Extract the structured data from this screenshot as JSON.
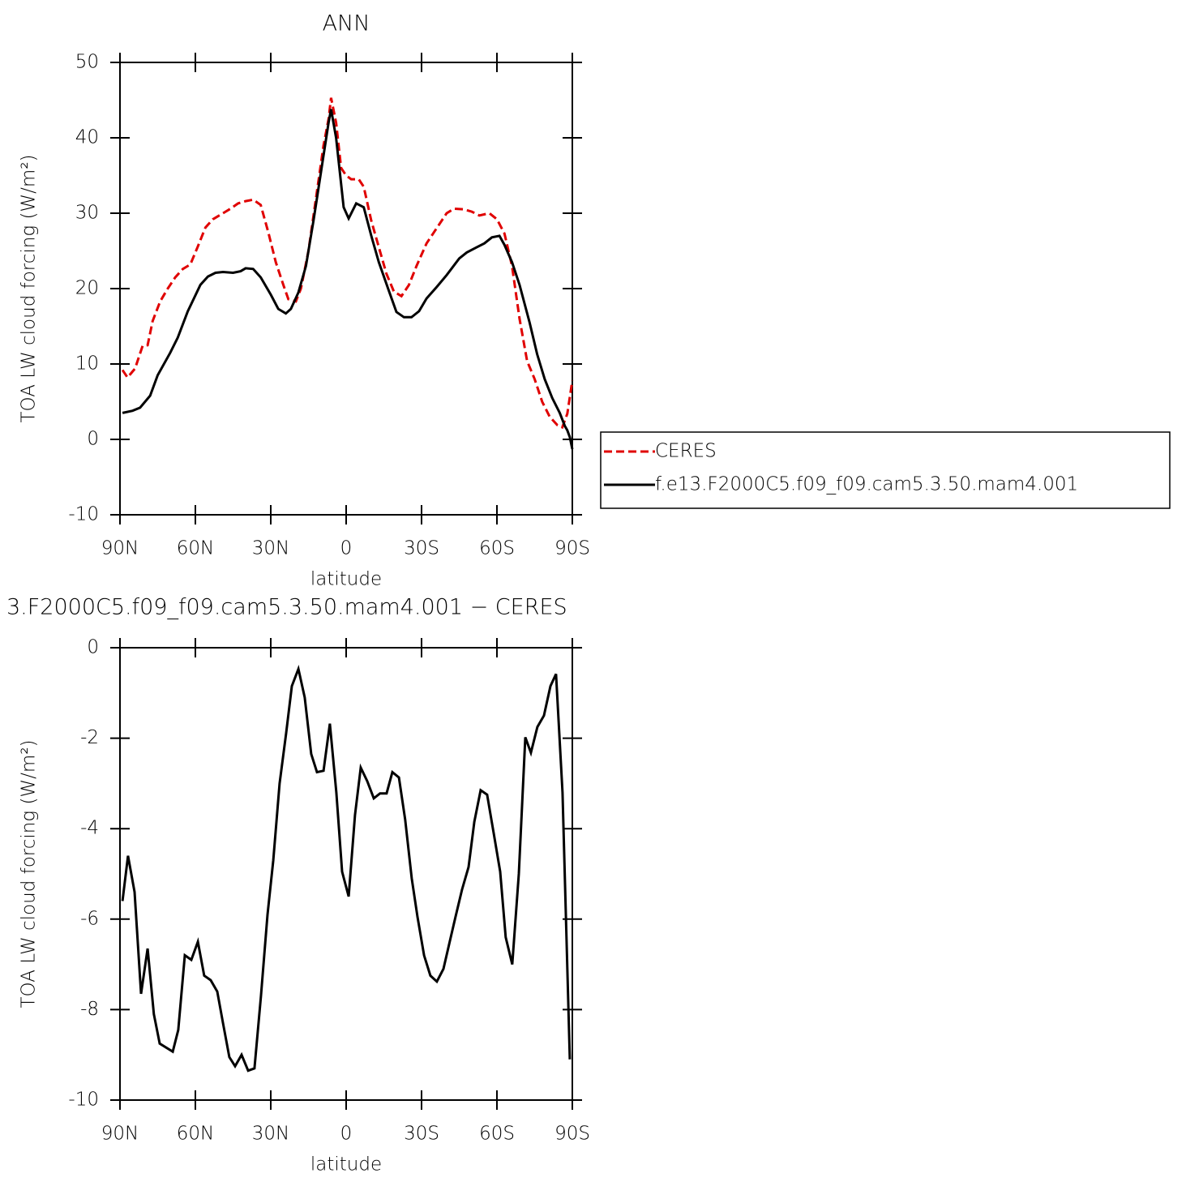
{
  "chart_data": [
    {
      "type": "line",
      "title": "ANN",
      "xlabel": "latitude",
      "ylabel": "TOA LW cloud forcing (W/m²)",
      "xlim": [
        90,
        -90
      ],
      "ylim": [
        -10,
        50
      ],
      "xticks": [
        {
          "value": 90,
          "label": "90N"
        },
        {
          "value": 60,
          "label": "60N"
        },
        {
          "value": 30,
          "label": "30N"
        },
        0,
        {
          "value": -30,
          "label": "30S"
        },
        {
          "value": -60,
          "label": "60S"
        },
        {
          "value": -90,
          "label": "90S"
        }
      ],
      "yticks": [
        -10,
        0,
        10,
        20,
        30,
        40,
        50
      ],
      "legend": "right",
      "series": [
        {
          "name": "CERES",
          "color": "#e00000",
          "dash": true,
          "x": [
            89,
            87,
            84,
            81,
            79,
            77,
            74,
            71,
            68,
            65,
            62,
            59,
            56,
            53,
            49,
            46,
            43,
            40,
            37,
            34,
            31,
            28,
            25,
            23,
            20,
            18,
            15,
            12,
            9,
            7,
            6,
            4,
            2,
            0,
            -2,
            -5,
            -7,
            -10,
            -13,
            -16,
            -19,
            -22,
            -25,
            -28,
            -32,
            -36,
            -40,
            -43,
            -47,
            -50,
            -53,
            -57,
            -60,
            -63,
            -66,
            -69,
            -72,
            -75,
            -78,
            -81,
            -84,
            -86,
            -88,
            -90
          ],
          "values": [
            9.2,
            8.2,
            9.4,
            12.4,
            12.5,
            15.7,
            18.3,
            20,
            21.5,
            22.6,
            23.2,
            25.6,
            28.1,
            29.2,
            30,
            30.6,
            31.3,
            31.6,
            31.8,
            31.1,
            27.5,
            23.5,
            20.5,
            18.6,
            18.3,
            20,
            25,
            32,
            39,
            42.5,
            45.3,
            42,
            36,
            35,
            34.5,
            34.5,
            33.5,
            29,
            25.5,
            22,
            19.6,
            19,
            20.5,
            23,
            26,
            28,
            30,
            30.6,
            30.5,
            30.2,
            29.7,
            30,
            29.2,
            27.3,
            23,
            16,
            10.4,
            8,
            5,
            3,
            1.9,
            1.6,
            3.4,
            7.8
          ]
        },
        {
          "name": "f.e13.F2000C5.f09_f09.cam5.3.50.mam4.001",
          "color": "#000000",
          "dash": false,
          "x": [
            89,
            85,
            82,
            78,
            75,
            70,
            67,
            63,
            58,
            55,
            52,
            49,
            45,
            42,
            40,
            37,
            34,
            30,
            27,
            24,
            22,
            19,
            16,
            13,
            10,
            7,
            6,
            4,
            1,
            -1,
            -4,
            -7,
            -10,
            -13,
            -17,
            -20,
            -23,
            -26,
            -29,
            -32,
            -36,
            -40,
            -45,
            -48,
            -52,
            -55,
            -58,
            -61,
            -63,
            -66,
            -69,
            -73,
            -76,
            -79,
            -82,
            -85,
            -87,
            -88,
            -89,
            -90
          ],
          "values": [
            3.5,
            3.8,
            4.2,
            5.8,
            8.5,
            11.5,
            13.5,
            17,
            20.5,
            21.6,
            22.1,
            22.2,
            22.1,
            22.3,
            22.7,
            22.6,
            21.5,
            19.2,
            17.3,
            16.7,
            17.3,
            19.5,
            23,
            29,
            35.5,
            42,
            43.8,
            40,
            30.8,
            29.3,
            31.3,
            30.8,
            27,
            23.5,
            19.7,
            16.9,
            16.2,
            16.2,
            17,
            18.7,
            20.2,
            21.8,
            24,
            24.8,
            25.5,
            26,
            26.8,
            27,
            25.8,
            23.5,
            20.5,
            15.5,
            11.3,
            8,
            5.5,
            3.5,
            1.8,
            1.2,
            0.3,
            -1.3
          ]
        }
      ]
    },
    {
      "type": "line",
      "title": "3.F2000C5.f09_f09.cam5.3.50.mam4.001 − CERES",
      "xlabel": "latitude",
      "ylabel": "TOA LW cloud forcing (W/m²)",
      "xlim": [
        90,
        -90
      ],
      "ylim": [
        -10,
        0
      ],
      "xticks": [
        {
          "value": 90,
          "label": "90N"
        },
        {
          "value": 60,
          "label": "60N"
        },
        {
          "value": 30,
          "label": "30N"
        },
        0,
        {
          "value": -30,
          "label": "30S"
        },
        {
          "value": -60,
          "label": "60S"
        },
        {
          "value": -90,
          "label": "90S"
        }
      ],
      "yticks": [
        -10,
        -8,
        -6,
        -4,
        -2,
        0
      ],
      "series": [
        {
          "color": "#000000",
          "dash": false,
          "x": [
            89,
            86.8,
            84.2,
            81.6,
            79,
            76.5,
            74.2,
            69,
            66.8,
            64.2,
            61.6,
            59,
            56.5,
            53.9,
            51.3,
            49,
            46.5,
            44.2,
            41.6,
            39,
            36.5,
            33.9,
            31.3,
            29,
            26.5,
            23.9,
            21.6,
            19,
            16.5,
            13.9,
            11.6,
            9,
            6.5,
            3.9,
            1.6,
            -1,
            -3.5,
            -5.8,
            -8.4,
            -11,
            -13.5,
            -16.1,
            -18.4,
            -21,
            -23.5,
            -26.1,
            -28.4,
            -31,
            -33.5,
            -36.1,
            -38.7,
            -41,
            -43.5,
            -46.1,
            -48.7,
            -51,
            -53.5,
            -56.1,
            -58.7,
            -61.3,
            -63.5,
            -66.1,
            -68.7,
            -71.3,
            -73.5,
            -76.1,
            -78.7,
            -81.3,
            -83.5,
            -86.1,
            -89
          ],
          "values": [
            -5.6,
            -4.6,
            -5.4,
            -7.65,
            -6.65,
            -8.1,
            -8.75,
            -8.93,
            -8.45,
            -6.8,
            -6.9,
            -6.5,
            -7.25,
            -7.35,
            -7.6,
            -8.3,
            -9.05,
            -9.25,
            -9,
            -9.35,
            -9.3,
            -7.7,
            -5.9,
            -4.7,
            -3,
            -1.9,
            -0.85,
            -0.47,
            -1.1,
            -2.35,
            -2.75,
            -2.72,
            -1.68,
            -3.2,
            -4.95,
            -5.5,
            -3.7,
            -2.65,
            -2.95,
            -3.33,
            -3.22,
            -3.22,
            -2.75,
            -2.87,
            -3.8,
            -5.1,
            -5.95,
            -6.8,
            -7.25,
            -7.38,
            -7.1,
            -6.55,
            -5.95,
            -5.35,
            -4.85,
            -3.85,
            -3.15,
            -3.25,
            -4.1,
            -4.95,
            -6.4,
            -7,
            -5,
            -1.98,
            -2.32,
            -1.75,
            -1.5,
            -0.85,
            -0.58,
            -3.2,
            -9.1
          ]
        }
      ]
    }
  ]
}
